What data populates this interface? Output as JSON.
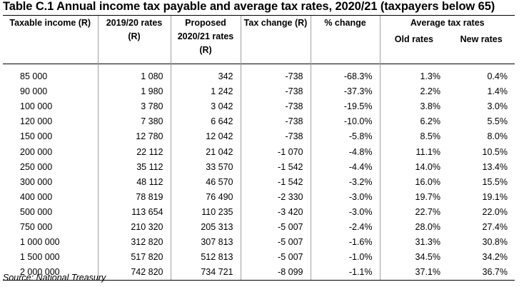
{
  "title": "Table C.1  Annual income tax payable and average tax rates, 2020/21 (taxpayers below 65)",
  "headers": {
    "taxable_income": "Taxable income (R)",
    "rates_2019": "2019/20 rates",
    "rates_2019_unit": "(R)",
    "proposed_line1": "Proposed",
    "proposed_line2": "2020/21 rates",
    "proposed_unit": "(R)",
    "tax_change": "Tax change (R)",
    "pct_change": "% change",
    "avg_tax_rates": "Average tax rates",
    "old_rates": "Old rates",
    "new_rates": "New rates"
  },
  "rows": [
    {
      "income": "85 000",
      "rates_2019": "1 080",
      "proposed": "342",
      "tax_change": "-738",
      "pct_change": "-68.3%",
      "old_rate": "1.3%",
      "new_rate": "0.4%"
    },
    {
      "income": "90 000",
      "rates_2019": "1 980",
      "proposed": "1 242",
      "tax_change": "-738",
      "pct_change": "-37.3%",
      "old_rate": "2.2%",
      "new_rate": "1.4%"
    },
    {
      "income": "100 000",
      "rates_2019": "3 780",
      "proposed": "3 042",
      "tax_change": "-738",
      "pct_change": "-19.5%",
      "old_rate": "3.8%",
      "new_rate": "3.0%"
    },
    {
      "income": "120 000",
      "rates_2019": "7 380",
      "proposed": "6 642",
      "tax_change": "-738",
      "pct_change": "-10.0%",
      "old_rate": "6.2%",
      "new_rate": "5.5%"
    },
    {
      "income": "150 000",
      "rates_2019": "12 780",
      "proposed": "12 042",
      "tax_change": "-738",
      "pct_change": "-5.8%",
      "old_rate": "8.5%",
      "new_rate": "8.0%"
    },
    {
      "income": "200 000",
      "rates_2019": "22 112",
      "proposed": "21 042",
      "tax_change": "-1 070",
      "pct_change": "-4.8%",
      "old_rate": "11.1%",
      "new_rate": "10.5%"
    },
    {
      "income": "250 000",
      "rates_2019": "35 112",
      "proposed": "33 570",
      "tax_change": "-1 542",
      "pct_change": "-4.4%",
      "old_rate": "14.0%",
      "new_rate": "13.4%"
    },
    {
      "income": "300 000",
      "rates_2019": "48 112",
      "proposed": "46 570",
      "tax_change": "-1 542",
      "pct_change": "-3.2%",
      "old_rate": "16.0%",
      "new_rate": "15.5%"
    },
    {
      "income": "400 000",
      "rates_2019": "78 819",
      "proposed": "76 490",
      "tax_change": "-2 330",
      "pct_change": "-3.0%",
      "old_rate": "19.7%",
      "new_rate": "19.1%"
    },
    {
      "income": "500 000",
      "rates_2019": "113 654",
      "proposed": "110 235",
      "tax_change": "-3 420",
      "pct_change": "-3.0%",
      "old_rate": "22.7%",
      "new_rate": "22.0%"
    },
    {
      "income": "750 000",
      "rates_2019": "210 320",
      "proposed": "205 313",
      "tax_change": "-5 007",
      "pct_change": "-2.4%",
      "old_rate": "28.0%",
      "new_rate": "27.4%"
    },
    {
      "income": "1 000 000",
      "rates_2019": "312 820",
      "proposed": "307 813",
      "tax_change": "-5 007",
      "pct_change": "-1.6%",
      "old_rate": "31.3%",
      "new_rate": "30.8%"
    },
    {
      "income": "1 500 000",
      "rates_2019": "517 820",
      "proposed": "512 813",
      "tax_change": "-5 007",
      "pct_change": "-1.0%",
      "old_rate": "34.5%",
      "new_rate": "34.2%"
    },
    {
      "income": "2 000 000",
      "rates_2019": "742 820",
      "proposed": "734 721",
      "tax_change": "-8 099",
      "pct_change": "-1.1%",
      "old_rate": "37.1%",
      "new_rate": "36.7%"
    }
  ],
  "source": "Source: National Treasury"
}
